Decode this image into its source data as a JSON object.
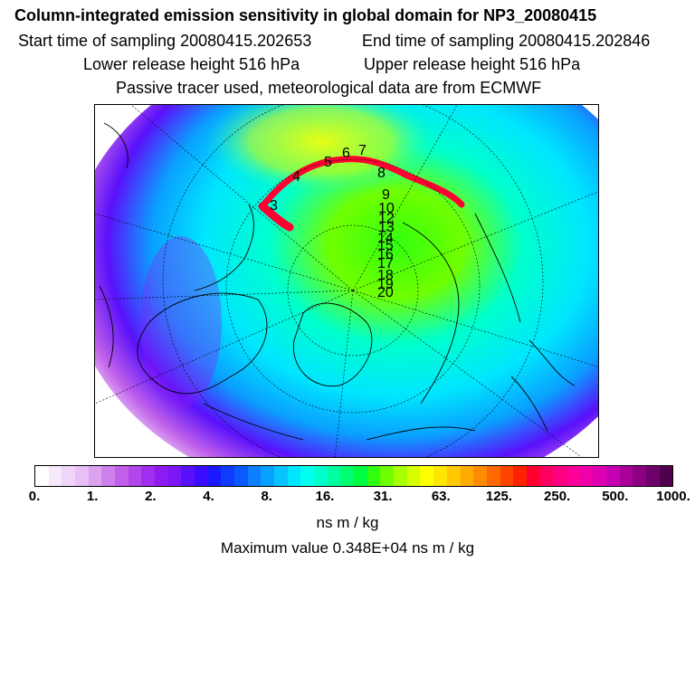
{
  "header": {
    "title": "Column-integrated emission sensitivity in global domain for NP3_20080415",
    "start_time": "Start time of sampling 20080415.202653",
    "end_time": "End time of sampling 20080415.202846",
    "lower_height": "Lower release height  516 hPa",
    "upper_height": "Upper release height  516 hPa",
    "note": "Passive tracer used, meteorological data are from ECMWF"
  },
  "map": {
    "track_labels": [
      "3",
      "4",
      "5",
      "6",
      "7",
      "8",
      "9",
      "10",
      "12",
      "13",
      "14",
      "15",
      "16",
      "17",
      "18",
      "19",
      "20"
    ]
  },
  "colorbar": {
    "colors": [
      "#ffffff",
      "#f6e9fb",
      "#efd6f8",
      "#e7c0f5",
      "#dca2f0",
      "#cf80ec",
      "#c060ea",
      "#b146ea",
      "#a02df0",
      "#8d1cf3",
      "#7a18f8",
      "#5a10fb",
      "#3a0cff",
      "#1c18ff",
      "#0e3cff",
      "#0a5aff",
      "#0c7eff",
      "#0aa0ff",
      "#06c4ff",
      "#00e6ff",
      "#00ffee",
      "#00ffcc",
      "#00ffa0",
      "#00ff70",
      "#00ff40",
      "#30ff10",
      "#70ff00",
      "#a8ff00",
      "#d8ff00",
      "#ffff00",
      "#ffe600",
      "#ffc800",
      "#ffaa00",
      "#ff8c00",
      "#ff6a00",
      "#ff4400",
      "#ff2200",
      "#ff0030",
      "#ff0060",
      "#ff0080",
      "#ff0098",
      "#f000a8",
      "#dc00b0",
      "#c400b0",
      "#a80098",
      "#8c0084",
      "#6e006a",
      "#50004c"
    ],
    "tick_labels": [
      "0.",
      "1.",
      "2.",
      "4.",
      "8.",
      "16.",
      "31.",
      "63.",
      "125.",
      "250.",
      "500.",
      "1000."
    ],
    "units": "ns m / kg"
  },
  "max_value": "Maximum value  0.348E+04 ns m / kg"
}
